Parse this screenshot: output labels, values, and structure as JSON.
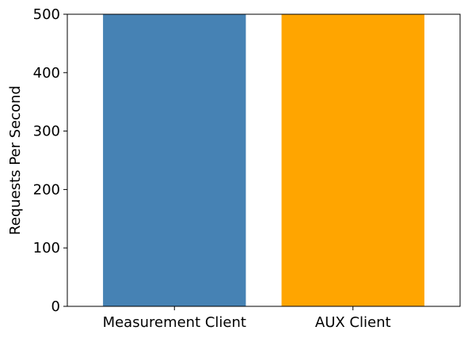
{
  "chart_data": {
    "type": "bar",
    "categories": [
      "Measurement Client",
      "AUX Client"
    ],
    "values": [
      500,
      500
    ],
    "colors": [
      "#4682b4",
      "#ffa500"
    ],
    "title": "",
    "xlabel": "",
    "ylabel": "Requests Per Second",
    "ylim": [
      0,
      500
    ],
    "yticks": [
      0,
      100,
      200,
      300,
      400,
      500
    ],
    "grid": false,
    "legend": "none"
  }
}
